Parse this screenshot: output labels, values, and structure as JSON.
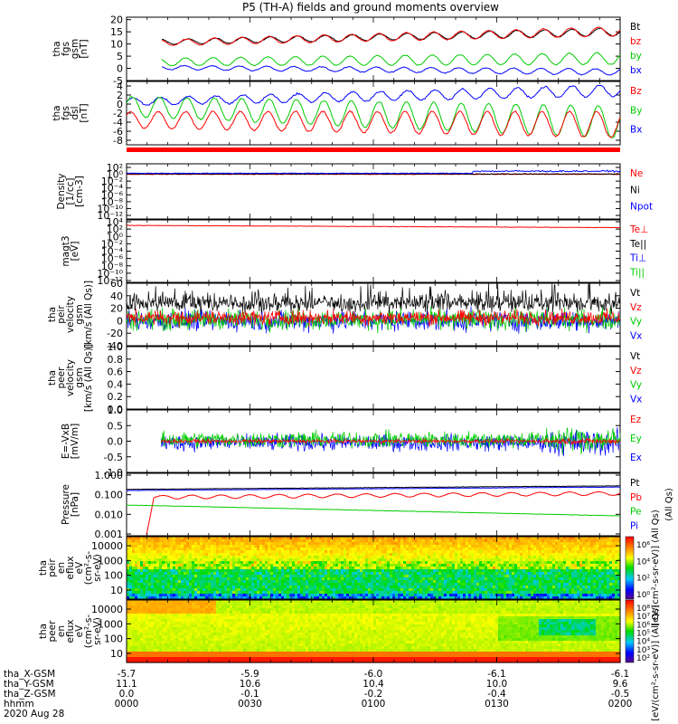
{
  "title": "P5 (TH-A) fields and ground moments overview",
  "chart_data": [
    {
      "type": "line",
      "panel": "fgs",
      "ylabel": [
        "tha",
        "fgs",
        "gsm",
        "[nT]"
      ],
      "ylim": [
        -5,
        21
      ],
      "yticks": [
        -5,
        0,
        5,
        10,
        15,
        20
      ],
      "legend": [
        {
          "name": "Bt",
          "color": "#000000"
        },
        {
          "name": "bz",
          "color": "#ff0000"
        },
        {
          "name": "by",
          "color": "#00cc00"
        },
        {
          "name": "bx",
          "color": "#0000ff"
        }
      ],
      "series": [
        {
          "name": "Bt",
          "color": "#000000",
          "start": 0.07,
          "base": 10.5,
          "trend": 4.5,
          "amp": 1.0,
          "periods": 18
        },
        {
          "name": "bz",
          "color": "#ff0000",
          "start": 0.07,
          "base": 10.2,
          "trend": 5.0,
          "amp": 1.2,
          "periods": 18
        },
        {
          "name": "by",
          "color": "#00cc00",
          "start": 0.07,
          "base": 2.5,
          "trend": 1.5,
          "amp": 1.5,
          "periods": 18
        },
        {
          "name": "bx",
          "color": "#0000ff",
          "start": 0.07,
          "base": 0.5,
          "trend": -2.0,
          "amp": 0.8,
          "periods": 18
        }
      ]
    },
    {
      "type": "line",
      "panel": "fgs_ssl",
      "ylabel": [
        "tha",
        "fgs",
        "dsl",
        "[nT]"
      ],
      "ylim": [
        -9,
        5
      ],
      "yticks": [
        -8,
        -6,
        -4,
        -2,
        0,
        2,
        4
      ],
      "legend": [
        {
          "name": "Bz",
          "color": "#ff0000"
        },
        {
          "name": "By",
          "color": "#00cc00"
        },
        {
          "name": "Bx",
          "color": "#0000ff"
        }
      ],
      "series": [
        {
          "name": "Bx",
          "color": "#0000ff",
          "start": 0.0,
          "base": 0.5,
          "trend": 2.5,
          "amp": 0.8,
          "periods": 18
        },
        {
          "name": "By",
          "color": "#00cc00",
          "start": 0.0,
          "base": -0.5,
          "trend": -3.5,
          "amp": 2.2,
          "periods": 18
        },
        {
          "name": "Bz",
          "color": "#ff0000",
          "start": 0.0,
          "base": -3.5,
          "trend": -1.0,
          "amp": 1.8,
          "periods": 18
        }
      ]
    },
    {
      "type": "line",
      "panel": "density",
      "ylabel": [
        "Density",
        "[1/cc]",
        "[cm-3]"
      ],
      "ylim_log10": [
        -12,
        4
      ],
      "yticks": [
        "10²",
        "10⁰",
        "10⁻²",
        "10⁻⁴",
        "10⁻⁶",
        "10⁻⁸",
        "10⁻¹⁰",
        "10⁻¹²"
      ],
      "legend": [
        {
          "name": "Ne",
          "color": "#ff0000"
        },
        {
          "name": "Ni",
          "color": "#000000"
        },
        {
          "name": "Npot",
          "color": "#0000ff"
        }
      ],
      "series": [
        {
          "name": "Ne",
          "color": "#ff0000",
          "level": 0.0
        },
        {
          "name": "Ni",
          "color": "#000000",
          "level": 0.1
        },
        {
          "name": "Npot",
          "color": "#0000ff",
          "level": 0.3
        }
      ]
    },
    {
      "type": "line",
      "panel": "temperature",
      "ylabel": [
        "magt3",
        "[eV]"
      ],
      "ylim_log10": [
        -12,
        4
      ],
      "yticks": [
        "10⁴",
        "10²",
        "10⁰",
        "10⁻²",
        "10⁻⁴",
        "10⁻⁶",
        "10⁻⁸",
        "10⁻¹⁰",
        "10⁻¹²"
      ],
      "legend": [
        {
          "name": "Te⊥",
          "color": "#ff0000"
        },
        {
          "name": "Te||",
          "color": "#000000"
        },
        {
          "name": "Ti⊥",
          "color": "#0000ff"
        },
        {
          "name": "Ti||",
          "color": "#00cc00"
        }
      ],
      "series": [
        {
          "name": "Te",
          "color": "#ff0000",
          "level": 3.0
        }
      ]
    },
    {
      "type": "line",
      "panel": "peir_velocity",
      "ylabel": [
        "tha",
        "peir",
        "velocity",
        "gsm",
        "[km/s (All Qs)]"
      ],
      "ylim": [
        -40,
        60
      ],
      "yticks": [
        -40,
        -20,
        0,
        20,
        40,
        60
      ],
      "legend": [
        {
          "name": "Vt",
          "color": "#000000"
        },
        {
          "name": "Vz",
          "color": "#ff0000"
        },
        {
          "name": "Vy",
          "color": "#00cc00"
        },
        {
          "name": "Vx",
          "color": "#0000ff"
        }
      ],
      "series": [
        {
          "name": "Vx",
          "color": "#0000ff",
          "mean": 0,
          "noise": 14
        },
        {
          "name": "Vy",
          "color": "#00cc00",
          "mean": 2,
          "noise": 14
        },
        {
          "name": "Vt",
          "color": "#000000",
          "mean": 28,
          "noise": 12
        },
        {
          "name": "Vz",
          "color": "#ff0000",
          "mean": 5,
          "noise": 10
        }
      ]
    },
    {
      "type": "line",
      "panel": "peer_velocity",
      "ylabel": [
        "tha",
        "peer",
        "velocity",
        "gsm",
        "[km/s (All Qs)]"
      ],
      "ylim": [
        0,
        1
      ],
      "yticks": [
        "0.0",
        "0.2",
        "0.4",
        "0.6",
        "0.8",
        "1.0"
      ],
      "legend": [
        {
          "name": "Vt",
          "color": "#000000"
        },
        {
          "name": "Vz",
          "color": "#ff0000"
        },
        {
          "name": "Vy",
          "color": "#00cc00"
        },
        {
          "name": "Vx",
          "color": "#0000ff"
        }
      ],
      "series": []
    },
    {
      "type": "line",
      "panel": "efield",
      "ylabel": [
        "E=-VxB",
        "[mV/m]"
      ],
      "ylim": [
        -1,
        1
      ],
      "yticks": [
        "-1.0",
        "-0.5",
        "0.0",
        "0.5",
        "1.0"
      ],
      "legend": [
        {
          "name": "Ez",
          "color": "#ff0000"
        },
        {
          "name": "Ey",
          "color": "#00cc00"
        },
        {
          "name": "Ex",
          "color": "#0000ff"
        }
      ],
      "series": [
        {
          "name": "Ex",
          "color": "#0000ff",
          "start": 0.07,
          "mean": -0.05,
          "noise": 0.22
        },
        {
          "name": "Ey",
          "color": "#00cc00",
          "start": 0.07,
          "mean": 0.05,
          "noise": 0.22
        },
        {
          "name": "Ez",
          "color": "#ff0000",
          "start": 0.07,
          "mean": 0.0,
          "noise": 0.05
        }
      ]
    },
    {
      "type": "line",
      "panel": "pressure",
      "ylabel": [
        "Pressure",
        "[nPa]"
      ],
      "ylim_log10": [
        -3,
        0
      ],
      "yticks": [
        "1.000",
        "0.100",
        "0.010",
        "0.001"
      ],
      "right_label": "(All Qs)",
      "legend": [
        {
          "name": "Pt",
          "color": "#000000"
        },
        {
          "name": "Pb",
          "color": "#ff0000"
        },
        {
          "name": "Pe",
          "color": "#00cc00"
        },
        {
          "name": "Pi",
          "color": "#0000ff"
        }
      ],
      "series": [
        {
          "name": "Pt",
          "color": "#000000",
          "start": 0.0,
          "v0": 0.17,
          "v1": 0.25
        },
        {
          "name": "Pi",
          "color": "#0000ff",
          "start": 0.0,
          "v0": 0.15,
          "v1": 0.22
        },
        {
          "name": "Pb",
          "color": "#ff0000",
          "start": 0.04,
          "v0": 0.07,
          "v1": 0.11,
          "wave": 0.2
        },
        {
          "name": "Pe",
          "color": "#00cc00",
          "start": 0.0,
          "v0": 0.03,
          "v1": 0.009
        }
      ]
    },
    {
      "type": "heatmap",
      "panel": "peir_en_eflux",
      "ylabel": [
        "tha",
        "peir",
        "en",
        "eflux",
        "eV",
        "(cm²-s-",
        "sr-eV)"
      ],
      "ylim_log10": [
        0.85,
        4.3
      ],
      "yticks": [
        "10000",
        "1000",
        "100",
        "10"
      ],
      "colorbar_label": "[eV/(cm²-s-sr-eV)] (All Qs)",
      "colorbar_ticks": [
        "10⁶",
        "10⁴",
        "10²",
        "10⁰"
      ]
    },
    {
      "type": "heatmap",
      "panel": "peer_en_eflux",
      "ylabel": [
        "tha",
        "peer",
        "en",
        "eflux",
        "eV",
        "(cm²-s-",
        "sr-eV)"
      ],
      "ylim_log10": [
        0.85,
        4.3
      ],
      "yticks": [
        "10000",
        "1000",
        "100",
        "10"
      ],
      "colorbar_label": "[eV/(cm²-s-sr-eV)] (All Qs)",
      "colorbar_ticks": [
        "10⁸",
        "10⁷",
        "10⁶",
        "10⁵",
        "10⁴",
        "10³",
        "10²"
      ]
    }
  ],
  "xaxis": {
    "row_labels": [
      "tha_X-GSM",
      "tha_Y-GSM",
      "tha_Z-GSM",
      "hhmm",
      "2020 Aug 28"
    ],
    "ticks": [
      {
        "x": "-5.7",
        "y": "11.1",
        "z": "0.0",
        "hhmm": "0000"
      },
      {
        "x": "-5.9",
        "y": "10.6",
        "z": "-0.1",
        "hhmm": "0030"
      },
      {
        "x": "-6.0",
        "y": "10.4",
        "z": "-0.2",
        "hhmm": "0100"
      },
      {
        "x": "-6.1",
        "y": "10.0",
        "z": "-0.4",
        "hhmm": "0130"
      },
      {
        "x": "-6.1",
        "y": "9.6",
        "z": "-0.5",
        "hhmm": "0200"
      }
    ]
  }
}
